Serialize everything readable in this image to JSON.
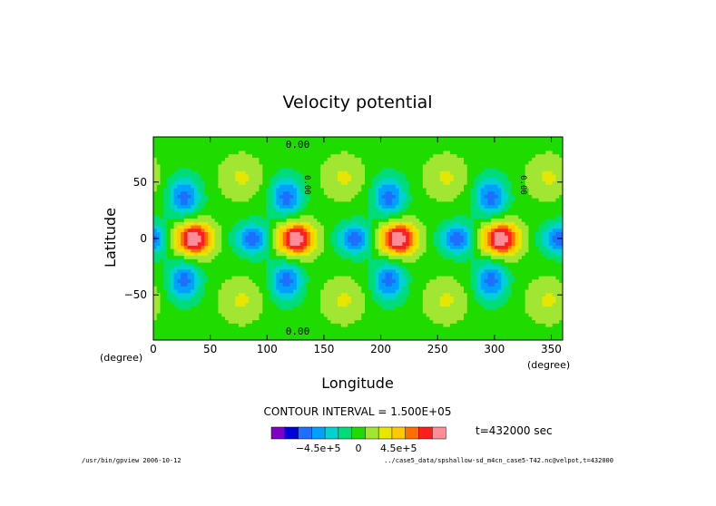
{
  "chart_data": {
    "type": "heatmap",
    "title": "Velocity potential",
    "xlabel": "Longitude",
    "ylabel": "Latitude",
    "x_unit": "(degree)",
    "y_unit": "(degree)",
    "xlim": [
      0,
      360
    ],
    "ylim": [
      -90,
      90
    ],
    "x_ticks": [
      "0",
      "50",
      "100",
      "150",
      "200",
      "250",
      "300",
      "350"
    ],
    "x_tick_values": [
      0,
      50,
      100,
      150,
      200,
      250,
      300,
      350
    ],
    "y_ticks": [
      "50",
      "0",
      "−50"
    ],
    "y_tick_values": [
      50,
      0,
      -50
    ],
    "contour_labels": [
      "0.00",
      "0.00",
      "0.00",
      "0.00"
    ],
    "contour_interval": "CONTOUR INTERVAL = 1.500E+05",
    "time_label": "t=432000 sec",
    "colorbar": {
      "colors": [
        "#7f00c8",
        "#0000dc",
        "#1e6eff",
        "#00a0ff",
        "#00d2d2",
        "#00dc78",
        "#1edc00",
        "#a0e632",
        "#e6e600",
        "#ffc800",
        "#ff6e00",
        "#ff1e1e",
        "#ff8c96"
      ],
      "labels": [
        "−4.5e+5",
        "0",
        "4.5e+5"
      ],
      "label_values": [
        -450000,
        0,
        450000
      ],
      "vmin": -975000,
      "vmax": 975000
    },
    "field": {
      "description_wavenumber": 4,
      "background": 0,
      "equatorial_max": 975000,
      "equatorial_max_lons": [
        35,
        125,
        215,
        305
      ],
      "equatorial_min": -600000,
      "equatorial_min_lons": [
        87,
        177,
        267,
        357
      ],
      "offequator_min": -600000,
      "offequator_min_lats": [
        37,
        -37
      ],
      "offequator_min_lons": [
        27,
        117,
        207,
        297
      ]
    }
  },
  "footer": {
    "left": "/usr/bin/gpview  2006-10-12",
    "right": "../case5_data/spshallow-sd_m4cn_case5-T42.nc@velpot,t=432000"
  },
  "colors": {
    "frame": "#000000",
    "background": "#ffffff"
  }
}
